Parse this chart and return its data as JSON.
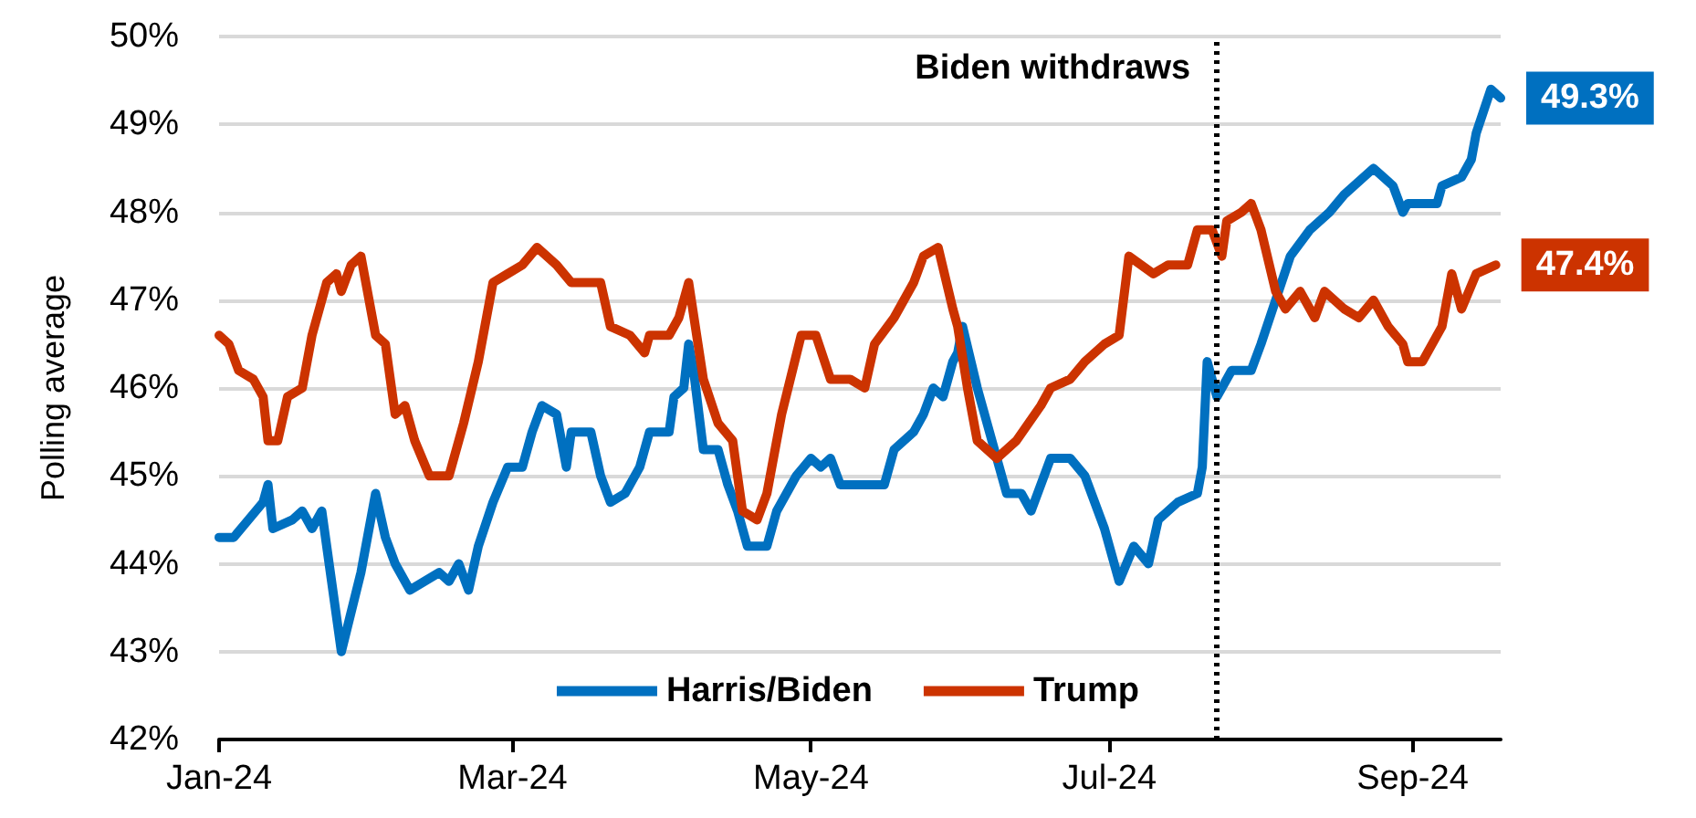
{
  "chart_data": {
    "type": "line",
    "ylabel": "Polling average",
    "xlim": [
      "2024-01-01",
      "2024-09-19"
    ],
    "xticks": [
      {
        "value": "2024-01-01",
        "label": "Jan-24"
      },
      {
        "value": "2024-03-01",
        "label": "Mar-24"
      },
      {
        "value": "2024-05-01",
        "label": "May-24"
      },
      {
        "value": "2024-07-01",
        "label": "Jul-24"
      },
      {
        "value": "2024-09-01",
        "label": "Sep-24"
      }
    ],
    "ylim": [
      42,
      50
    ],
    "yticks": [
      {
        "value": 42,
        "label": "42%"
      },
      {
        "value": 43,
        "label": "43%"
      },
      {
        "value": 44,
        "label": "44%"
      },
      {
        "value": 45,
        "label": "45%"
      },
      {
        "value": 46,
        "label": "46%"
      },
      {
        "value": 47,
        "label": "47%"
      },
      {
        "value": 48,
        "label": "48%"
      },
      {
        "value": 49,
        "label": "49%"
      },
      {
        "value": 50,
        "label": "50%"
      }
    ],
    "grid": "y",
    "legend": "bottom",
    "marker": "none",
    "line_style": "solid",
    "ref_lines": [
      {
        "axis": "x",
        "value": "2024-07-23",
        "label": "Biden withdraws",
        "color": "#000000",
        "line_style": "dotted"
      }
    ],
    "series": [
      {
        "name": "Harris/Biden",
        "color": "#0070c0",
        "x": [
          "2024-01-01",
          "2024-01-04",
          "2024-01-07",
          "2024-01-10",
          "2024-01-11",
          "2024-01-12",
          "2024-01-16",
          "2024-01-18",
          "2024-01-20",
          "2024-01-22",
          "2024-01-24",
          "2024-01-26",
          "2024-01-30",
          "2024-02-02",
          "2024-02-04",
          "2024-02-06",
          "2024-02-09",
          "2024-02-15",
          "2024-02-17",
          "2024-02-19",
          "2024-02-21",
          "2024-02-23",
          "2024-02-26",
          "2024-02-29",
          "2024-03-03",
          "2024-03-05",
          "2024-03-07",
          "2024-03-10",
          "2024-03-12",
          "2024-03-13",
          "2024-03-17",
          "2024-03-19",
          "2024-03-21",
          "2024-03-24",
          "2024-03-27",
          "2024-03-29",
          "2024-04-02",
          "2024-04-03",
          "2024-04-05",
          "2024-04-06",
          "2024-04-07",
          "2024-04-09",
          "2024-04-12",
          "2024-04-14",
          "2024-04-16",
          "2024-04-18",
          "2024-04-22",
          "2024-04-24",
          "2024-04-28",
          "2024-05-01",
          "2024-05-03",
          "2024-05-05",
          "2024-05-07",
          "2024-05-14",
          "2024-05-16",
          "2024-05-18",
          "2024-05-22",
          "2024-05-24",
          "2024-05-26",
          "2024-05-28",
          "2024-05-30",
          "2024-05-31",
          "2024-06-01",
          "2024-06-04",
          "2024-06-08",
          "2024-06-10",
          "2024-06-13",
          "2024-06-15",
          "2024-06-19",
          "2024-06-23",
          "2024-06-26",
          "2024-06-30",
          "2024-07-03",
          "2024-07-06",
          "2024-07-09",
          "2024-07-11",
          "2024-07-15",
          "2024-07-19",
          "2024-07-20",
          "2024-07-21",
          "2024-07-23",
          "2024-07-26",
          "2024-07-30",
          "2024-08-01",
          "2024-08-04",
          "2024-08-07",
          "2024-08-11",
          "2024-08-15",
          "2024-08-18",
          "2024-08-24",
          "2024-08-28",
          "2024-08-30",
          "2024-08-31",
          "2024-09-06",
          "2024-09-07",
          "2024-09-11",
          "2024-09-13",
          "2024-09-14",
          "2024-09-17",
          "2024-09-19"
        ],
        "values": [
          44.3,
          44.3,
          44.5,
          44.7,
          44.9,
          44.4,
          44.5,
          44.6,
          44.4,
          44.6,
          43.8,
          43.0,
          43.9,
          44.8,
          44.3,
          44.0,
          43.7,
          43.9,
          43.8,
          44.0,
          43.7,
          44.2,
          44.7,
          45.1,
          45.1,
          45.5,
          45.8,
          45.7,
          45.1,
          45.5,
          45.5,
          45.0,
          44.7,
          44.8,
          45.1,
          45.5,
          45.5,
          45.9,
          46.0,
          46.5,
          46.2,
          45.3,
          45.3,
          44.9,
          44.6,
          44.2,
          44.2,
          44.6,
          45.0,
          45.2,
          45.1,
          45.2,
          44.9,
          44.9,
          44.9,
          45.3,
          45.5,
          45.7,
          46.0,
          45.9,
          46.3,
          46.4,
          46.7,
          46.0,
          45.2,
          44.8,
          44.8,
          44.6,
          45.2,
          45.2,
          45.0,
          44.4,
          43.8,
          44.2,
          44.0,
          44.5,
          44.7,
          44.8,
          45.1,
          46.3,
          45.9,
          46.2,
          46.2,
          46.5,
          47.0,
          47.5,
          47.8,
          48.0,
          48.2,
          48.5,
          48.3,
          48.0,
          48.1,
          48.1,
          48.3,
          48.4,
          48.6,
          48.9,
          49.4,
          49.3
        ],
        "value_labels": [
          null,
          null,
          null,
          null,
          null,
          null,
          null,
          null,
          null,
          null,
          null,
          null,
          null,
          null,
          null,
          null,
          null,
          null,
          null,
          null,
          null,
          null,
          null,
          null,
          null,
          null,
          null,
          null,
          null,
          null,
          null,
          null,
          null,
          null,
          null,
          null,
          null,
          null,
          null,
          null,
          null,
          null,
          null,
          null,
          null,
          null,
          null,
          null,
          null,
          null,
          null,
          null,
          null,
          null,
          null,
          null,
          null,
          null,
          null,
          null,
          null,
          null,
          null,
          null,
          null,
          null,
          null,
          null,
          null,
          null,
          null,
          null,
          null,
          null,
          null,
          null,
          null,
          null,
          null,
          null,
          null,
          null,
          null,
          null,
          null,
          null,
          null,
          null,
          null,
          null,
          null,
          null,
          null,
          null,
          null,
          null,
          null,
          null,
          null,
          "49.3%"
        ]
      },
      {
        "name": "Trump",
        "color": "#cc3300",
        "x": [
          "2024-01-01",
          "2024-01-03",
          "2024-01-05",
          "2024-01-08",
          "2024-01-10",
          "2024-01-11",
          "2024-01-13",
          "2024-01-15",
          "2024-01-18",
          "2024-01-20",
          "2024-01-23",
          "2024-01-25",
          "2024-01-26",
          "2024-01-28",
          "2024-01-30",
          "2024-02-02",
          "2024-02-04",
          "2024-02-06",
          "2024-02-08",
          "2024-02-10",
          "2024-02-13",
          "2024-02-17",
          "2024-02-20",
          "2024-02-23",
          "2024-02-26",
          "2024-02-29",
          "2024-03-03",
          "2024-03-06",
          "2024-03-10",
          "2024-03-13",
          "2024-03-19",
          "2024-03-21",
          "2024-03-25",
          "2024-03-28",
          "2024-03-29",
          "2024-04-02",
          "2024-04-04",
          "2024-04-06",
          "2024-04-09",
          "2024-04-12",
          "2024-04-15",
          "2024-04-17",
          "2024-04-20",
          "2024-04-22",
          "2024-04-25",
          "2024-04-29",
          "2024-05-02",
          "2024-05-05",
          "2024-05-09",
          "2024-05-12",
          "2024-05-14",
          "2024-05-18",
          "2024-05-22",
          "2024-05-24",
          "2024-05-27",
          "2024-05-30",
          "2024-05-31",
          "2024-06-02",
          "2024-06-04",
          "2024-06-08",
          "2024-06-12",
          "2024-06-17",
          "2024-06-19",
          "2024-06-23",
          "2024-06-26",
          "2024-06-30",
          "2024-07-03",
          "2024-07-05",
          "2024-07-10",
          "2024-07-13",
          "2024-07-17",
          "2024-07-19",
          "2024-07-22",
          "2024-07-24",
          "2024-07-25",
          "2024-07-28",
          "2024-07-30",
          "2024-08-01",
          "2024-08-04",
          "2024-08-06",
          "2024-08-09",
          "2024-08-12",
          "2024-08-14",
          "2024-08-18",
          "2024-08-21",
          "2024-08-24",
          "2024-08-27",
          "2024-08-30",
          "2024-08-31",
          "2024-09-03",
          "2024-09-07",
          "2024-09-09",
          "2024-09-11",
          "2024-09-14",
          "2024-09-18"
        ],
        "values": [
          46.6,
          46.5,
          46.2,
          46.1,
          45.9,
          45.4,
          45.4,
          45.9,
          46.0,
          46.6,
          47.2,
          47.3,
          47.1,
          47.4,
          47.5,
          46.6,
          46.5,
          45.7,
          45.8,
          45.4,
          45.0,
          45.0,
          45.6,
          46.3,
          47.2,
          47.3,
          47.4,
          47.6,
          47.4,
          47.2,
          47.2,
          46.7,
          46.6,
          46.4,
          46.6,
          46.6,
          46.8,
          47.2,
          46.1,
          45.6,
          45.4,
          44.6,
          44.5,
          44.8,
          45.7,
          46.6,
          46.6,
          46.1,
          46.1,
          46.0,
          46.5,
          46.8,
          47.2,
          47.5,
          47.6,
          46.9,
          46.7,
          46.0,
          45.4,
          45.2,
          45.4,
          45.8,
          46.0,
          46.1,
          46.3,
          46.5,
          46.6,
          47.5,
          47.3,
          47.4,
          47.4,
          47.8,
          47.8,
          47.5,
          47.9,
          48.0,
          48.1,
          47.8,
          47.1,
          46.9,
          47.1,
          46.8,
          47.1,
          46.9,
          46.8,
          47.0,
          46.7,
          46.5,
          46.3,
          46.3,
          46.7,
          47.3,
          46.9,
          47.3,
          47.4
        ],
        "value_labels": [
          null,
          null,
          null,
          null,
          null,
          null,
          null,
          null,
          null,
          null,
          null,
          null,
          null,
          null,
          null,
          null,
          null,
          null,
          null,
          null,
          null,
          null,
          null,
          null,
          null,
          null,
          null,
          null,
          null,
          null,
          null,
          null,
          null,
          null,
          null,
          null,
          null,
          null,
          null,
          null,
          null,
          null,
          null,
          null,
          null,
          null,
          null,
          null,
          null,
          null,
          null,
          null,
          null,
          null,
          null,
          null,
          null,
          null,
          null,
          null,
          null,
          null,
          null,
          null,
          null,
          null,
          null,
          null,
          null,
          null,
          null,
          null,
          null,
          null,
          null,
          null,
          null,
          null,
          null,
          null,
          null,
          null,
          null,
          null,
          null,
          null,
          null,
          null,
          null,
          null,
          null,
          null,
          null,
          null,
          "47.4%"
        ]
      }
    ]
  }
}
